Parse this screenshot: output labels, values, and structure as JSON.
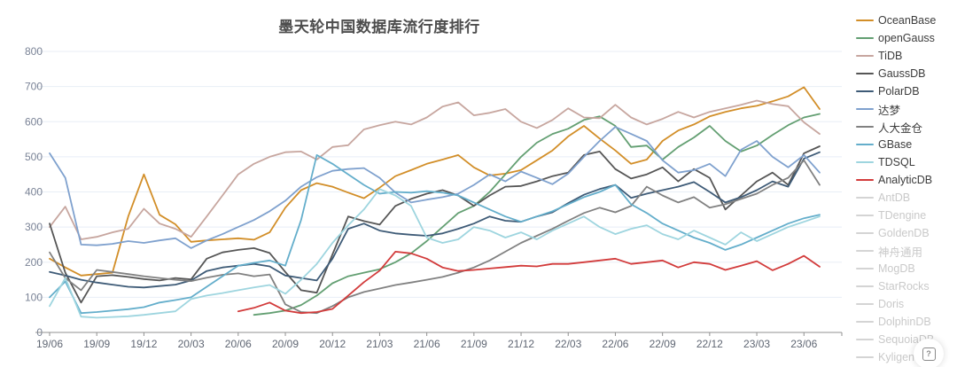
{
  "title": "墨天轮中国数据库流行度排行",
  "help_button": {
    "label": "?"
  },
  "chart_data": {
    "type": "line",
    "title": "墨天轮中国数据库流行度排行",
    "xlabel": "",
    "ylabel": "",
    "ylim": [
      0,
      800
    ],
    "y_tick_interval": 100,
    "grid": true,
    "legend_position": "right",
    "x": [
      "19/06",
      "19/07",
      "19/08",
      "19/09",
      "19/10",
      "19/11",
      "19/12",
      "20/01",
      "20/02",
      "20/03",
      "20/04",
      "20/05",
      "20/06",
      "20/07",
      "20/08",
      "20/09",
      "20/10",
      "20/11",
      "20/12",
      "21/01",
      "21/02",
      "21/03",
      "21/04",
      "21/05",
      "21/06",
      "21/07",
      "21/08",
      "21/09",
      "21/10",
      "21/11",
      "21/12",
      "22/01",
      "22/02",
      "22/03",
      "22/04",
      "22/05",
      "22/06",
      "22/07",
      "22/08",
      "22/09",
      "22/10",
      "22/11",
      "22/12",
      "23/01",
      "23/02",
      "23/03",
      "23/04",
      "23/05",
      "23/06",
      "23/07"
    ],
    "x_tick_every": 3,
    "series": [
      {
        "name": "OceanBase",
        "color": "#d28e28",
        "values": [
          210,
          185,
          162,
          166,
          170,
          330,
          450,
          335,
          308,
          258,
          262,
          265,
          268,
          264,
          285,
          355,
          405,
          425,
          415,
          398,
          382,
          412,
          445,
          462,
          480,
          492,
          505,
          470,
          447,
          452,
          462,
          490,
          518,
          558,
          588,
          552,
          518,
          480,
          492,
          545,
          575,
          592,
          615,
          628,
          638,
          645,
          658,
          672,
          698,
          636
        ]
      },
      {
        "name": "openGauss",
        "color": "#639f72",
        "values": [
          null,
          null,
          null,
          null,
          null,
          null,
          null,
          null,
          null,
          null,
          null,
          null,
          null,
          50,
          55,
          62,
          78,
          105,
          140,
          160,
          170,
          180,
          200,
          225,
          260,
          300,
          340,
          360,
          400,
          450,
          500,
          540,
          565,
          580,
          605,
          615,
          588,
          528,
          532,
          492,
          528,
          555,
          588,
          545,
          515,
          532,
          562,
          590,
          612,
          622
        ]
      },
      {
        "name": "TiDB",
        "color": "#c7a69f",
        "values": [
          300,
          358,
          265,
          272,
          285,
          295,
          352,
          310,
          295,
          272,
          330,
          390,
          450,
          480,
          500,
          513,
          515,
          492,
          528,
          533,
          578,
          590,
          600,
          592,
          612,
          643,
          655,
          618,
          625,
          636,
          600,
          582,
          605,
          638,
          612,
          610,
          648,
          612,
          592,
          608,
          628,
          612,
          628,
          638,
          648,
          660,
          650,
          644,
          598,
          565
        ]
      },
      {
        "name": "GaussDB",
        "color": "#565656",
        "values": [
          310,
          170,
          85,
          160,
          163,
          158,
          152,
          148,
          155,
          151,
          210,
          228,
          235,
          240,
          226,
          172,
          120,
          113,
          222,
          330,
          317,
          307,
          360,
          380,
          395,
          405,
          390,
          360,
          390,
          415,
          417,
          430,
          445,
          455,
          505,
          515,
          465,
          438,
          450,
          470,
          430,
          465,
          440,
          350,
          390,
          430,
          455,
          420,
          510,
          530
        ]
      },
      {
        "name": "PolarDB",
        "color": "#3e5b77",
        "values": [
          172,
          162,
          150,
          142,
          136,
          130,
          128,
          132,
          136,
          148,
          175,
          185,
          190,
          195,
          188,
          162,
          155,
          148,
          210,
          295,
          310,
          290,
          282,
          278,
          275,
          282,
          295,
          310,
          330,
          318,
          315,
          330,
          342,
          368,
          392,
          408,
          420,
          383,
          395,
          405,
          415,
          428,
          400,
          370,
          385,
          405,
          430,
          415,
          495,
          513
        ]
      },
      {
        "name": "达梦",
        "color": "#7fa1ce",
        "values": [
          510,
          440,
          250,
          248,
          252,
          260,
          255,
          262,
          268,
          240,
          262,
          280,
          300,
          320,
          345,
          375,
          415,
          442,
          460,
          465,
          468,
          440,
          398,
          370,
          378,
          385,
          395,
          420,
          450,
          430,
          458,
          440,
          422,
          452,
          500,
          545,
          585,
          565,
          545,
          490,
          455,
          462,
          480,
          445,
          520,
          545,
          500,
          470,
          505,
          455
        ]
      },
      {
        "name": "人大金仓",
        "color": "#818181",
        "values": [
          228,
          155,
          120,
          178,
          172,
          166,
          160,
          155,
          150,
          146,
          156,
          164,
          168,
          160,
          165,
          80,
          58,
          55,
          75,
          100,
          115,
          125,
          135,
          142,
          150,
          158,
          170,
          185,
          205,
          230,
          255,
          275,
          295,
          318,
          340,
          355,
          342,
          360,
          415,
          390,
          370,
          385,
          355,
          365,
          380,
          395,
          420,
          440,
          490,
          420
        ]
      },
      {
        "name": "GBase",
        "color": "#64aecb",
        "values": [
          100,
          145,
          55,
          58,
          62,
          66,
          72,
          85,
          92,
          100,
          130,
          160,
          190,
          198,
          205,
          190,
          320,
          505,
          480,
          450,
          420,
          395,
          400,
          398,
          402,
          398,
          390,
          370,
          350,
          330,
          315,
          330,
          345,
          365,
          385,
          400,
          420,
          365,
          340,
          310,
          290,
          270,
          255,
          235,
          250,
          270,
          290,
          310,
          325,
          335
        ]
      },
      {
        "name": "TDSQL",
        "color": "#9ed5df",
        "values": [
          75,
          155,
          45,
          42,
          44,
          46,
          50,
          55,
          60,
          95,
          105,
          112,
          120,
          128,
          135,
          110,
          150,
          195,
          255,
          305,
          350,
          408,
          390,
          360,
          270,
          255,
          265,
          300,
          290,
          270,
          285,
          265,
          290,
          310,
          330,
          300,
          280,
          295,
          305,
          280,
          265,
          290,
          270,
          250,
          285,
          260,
          280,
          300,
          315,
          330
        ]
      },
      {
        "name": "AnalyticDB",
        "color": "#d23b3b",
        "values": [
          null,
          null,
          null,
          null,
          null,
          null,
          null,
          null,
          null,
          null,
          null,
          null,
          60,
          70,
          85,
          62,
          55,
          58,
          67,
          105,
          143,
          176,
          230,
          225,
          210,
          185,
          175,
          178,
          182,
          186,
          190,
          188,
          195,
          195,
          200,
          205,
          210,
          195,
          200,
          205,
          185,
          200,
          195,
          178,
          190,
          203,
          177,
          195,
          218,
          187
        ]
      }
    ]
  },
  "legend": {
    "items": [
      {
        "label": "OceanBase",
        "color": "#d28e28",
        "active": true
      },
      {
        "label": "openGauss",
        "color": "#639f72",
        "active": true
      },
      {
        "label": "TiDB",
        "color": "#c7a69f",
        "active": true
      },
      {
        "label": "GaussDB",
        "color": "#565656",
        "active": true
      },
      {
        "label": "PolarDB",
        "color": "#3e5b77",
        "active": true
      },
      {
        "label": "达梦",
        "color": "#7fa1ce",
        "active": true
      },
      {
        "label": "人大金仓",
        "color": "#818181",
        "active": true
      },
      {
        "label": "GBase",
        "color": "#64aecb",
        "active": true
      },
      {
        "label": "TDSQL",
        "color": "#9ed5df",
        "active": true
      },
      {
        "label": "AnalyticDB",
        "color": "#d23b3b",
        "active": true
      },
      {
        "label": "AntDB",
        "color": "#d4d4d4",
        "active": false
      },
      {
        "label": "TDengine",
        "color": "#d4d4d4",
        "active": false
      },
      {
        "label": "GoldenDB",
        "color": "#d4d4d4",
        "active": false
      },
      {
        "label": "神舟通用",
        "color": "#d4d4d4",
        "active": false
      },
      {
        "label": "MogDB",
        "color": "#d4d4d4",
        "active": false
      },
      {
        "label": "StarRocks",
        "color": "#d4d4d4",
        "active": false
      },
      {
        "label": "Doris",
        "color": "#d4d4d4",
        "active": false
      },
      {
        "label": "DolphinDB",
        "color": "#d4d4d4",
        "active": false
      },
      {
        "label": "SequoiaDB",
        "color": "#d4d4d4",
        "active": false
      },
      {
        "label": "Kyligence",
        "color": "#d4d4d4",
        "active": false
      }
    ]
  },
  "style": {
    "grid_color": "#e8eef6",
    "axis_color": "#909090",
    "axis_label_color": "#7a8396",
    "x_label_color": "#5f6673"
  }
}
